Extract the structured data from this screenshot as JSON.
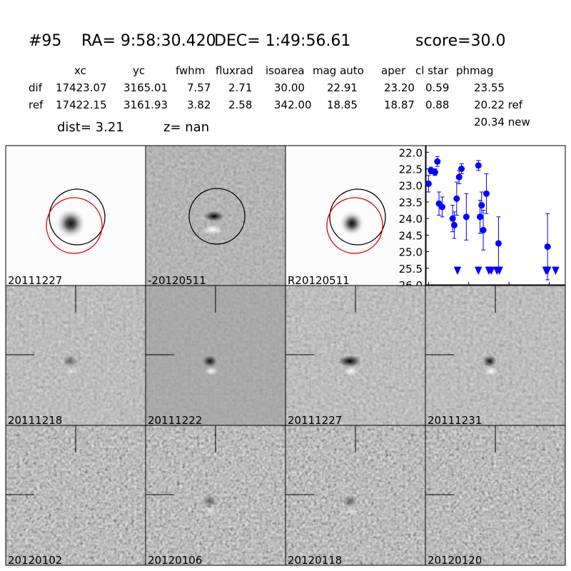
{
  "header": {
    "id": "#95",
    "ra": "RA= 9:58:30.420",
    "dec": "DEC= 1:49:56.61",
    "score": "score=30.0"
  },
  "table": {
    "columns": [
      "xc",
      "yc",
      "fwhm",
      "fluxrad",
      "isoarea",
      "mag auto",
      "aper",
      "cl star",
      "phmag"
    ],
    "rows": [
      [
        "dif",
        "17423.07",
        "3165.01",
        "7.57",
        "2.71",
        "30.00",
        "22.91",
        "23.20",
        "0.59",
        "23.55"
      ],
      [
        "ref",
        "17422.15",
        "3161.93",
        "3.82",
        "2.58",
        "342.00",
        "18.85",
        "18.87",
        "0.88",
        "20.22 ref"
      ]
    ],
    "extra": "20.34 new",
    "dist": "dist=  3.21",
    "z": "z=   nan"
  },
  "panels": [
    {
      "label": "20111227"
    },
    {
      "label": "-20120511"
    },
    {
      "label": "R20120511"
    },
    {
      "label": "20111218"
    },
    {
      "label": "20111222"
    },
    {
      "label": "20111227"
    },
    {
      "label": "20111231"
    },
    {
      "label": "20120102"
    },
    {
      "label": "20120106"
    },
    {
      "label": "20120118"
    },
    {
      "label": "20120120"
    }
  ],
  "chart_data": {
    "type": "errorbar",
    "xlim": [
      -3,
      170
    ],
    "ylim": [
      26,
      21.8
    ],
    "xticks": [
      0,
      50,
      100,
      150
    ],
    "yticks": [
      {
        "value": 22,
        "label": "22.0"
      },
      {
        "value": 22.5,
        "label": "22.5"
      },
      {
        "value": 23,
        "label": "23.0"
      },
      {
        "value": 23.5,
        "label": "23.5"
      },
      {
        "value": 24,
        "label": "24.0"
      },
      {
        "value": 24.5,
        "label": "24.5"
      },
      {
        "value": 25,
        "label": "25.0"
      },
      {
        "value": 25.5,
        "label": "25.5"
      },
      {
        "value": 26,
        "label": "26.0"
      }
    ],
    "series": [
      {
        "color": "#0000ff",
        "marker": "circle",
        "x": [
          0,
          3,
          8,
          11,
          13,
          17,
          30,
          32,
          35,
          38,
          41,
          47,
          62,
          64,
          66,
          68,
          72,
          87,
          148
        ],
        "values": [
          22.95,
          22.55,
          22.6,
          22.28,
          23.55,
          23.65,
          24.0,
          24.2,
          23.4,
          22.75,
          22.5,
          23.95,
          22.4,
          23.95,
          23.6,
          24.35,
          23.25,
          24.75,
          24.85
        ],
        "errors": [
          0.25,
          0.1,
          0.1,
          0.15,
          0.35,
          0.3,
          0.4,
          0.4,
          0.5,
          0.2,
          0.15,
          0.7,
          0.15,
          0.5,
          0.4,
          0.6,
          0.6,
          0.8,
          1.0
        ]
      },
      {
        "color": "#0000ff",
        "marker": "triangle-down",
        "x": [
          36,
          62,
          75,
          78,
          85,
          88,
          146,
          148,
          158
        ],
        "values": [
          25.55,
          25.55,
          25.55,
          25.55,
          25.55,
          25.55,
          25.55,
          25.55,
          25.55
        ]
      }
    ]
  }
}
